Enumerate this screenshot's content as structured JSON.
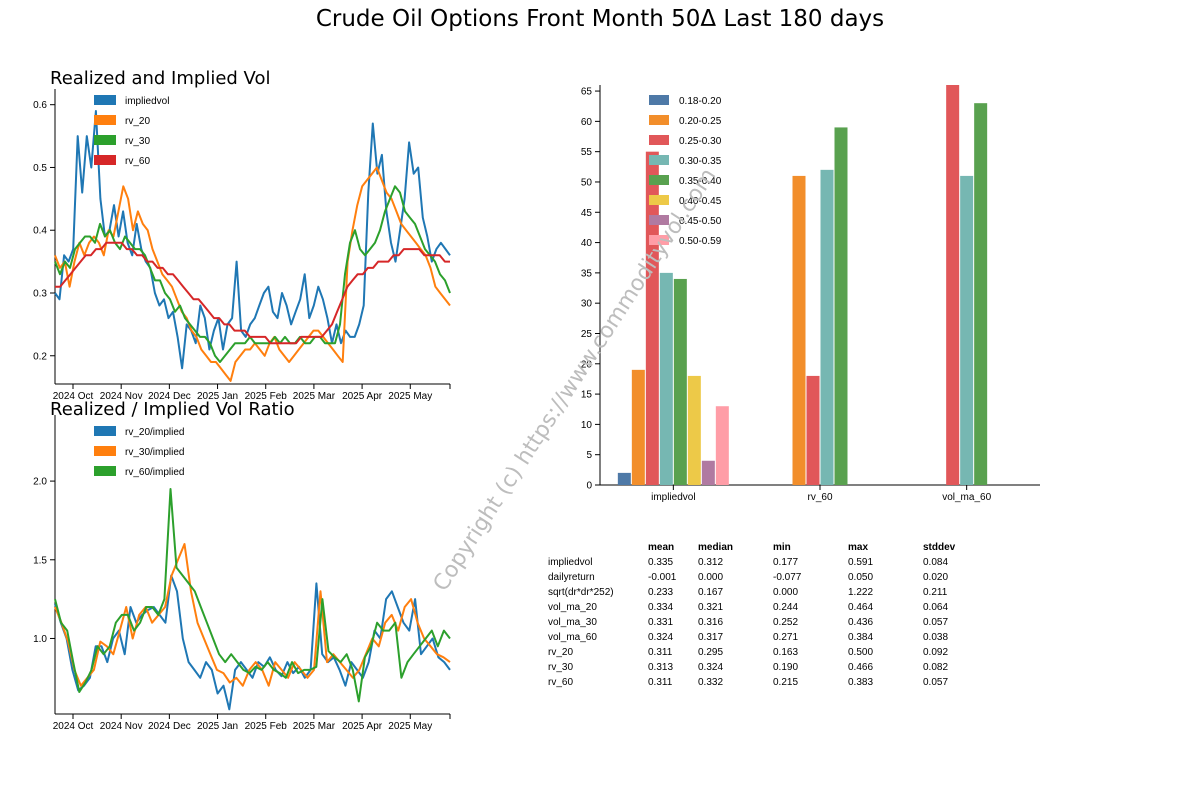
{
  "title": "Crude Oil Options Front Month 50Δ Last 180 days",
  "watermark": "Copyright (c) https://www.commodityvol.com",
  "colors": {
    "blue": "#1f77b4",
    "orange": "#ff7f0e",
    "green": "#2ca02c",
    "red": "#d62728"
  },
  "chart_data": [
    {
      "type": "line",
      "title": "Realized and Implied Vol",
      "x_ticks": [
        "2024 Oct",
        "2024 Nov",
        "2024 Dec",
        "2025 Jan",
        "2025 Feb",
        "2025 Mar",
        "2025 Apr",
        "2025 May"
      ],
      "y_ticks": [
        "0.2",
        "0.3",
        "0.4",
        "0.5",
        "0.6"
      ],
      "ylim": [
        0.155,
        0.625
      ],
      "legend": "top-left",
      "series": [
        {
          "name": "impliedvol",
          "color": "#1f77b4",
          "values": [
            0.3,
            0.29,
            0.36,
            0.35,
            0.37,
            0.55,
            0.46,
            0.55,
            0.5,
            0.59,
            0.45,
            0.39,
            0.4,
            0.44,
            0.39,
            0.43,
            0.38,
            0.36,
            0.41,
            0.37,
            0.35,
            0.34,
            0.3,
            0.28,
            0.29,
            0.26,
            0.27,
            0.23,
            0.18,
            0.25,
            0.24,
            0.22,
            0.28,
            0.26,
            0.21,
            0.24,
            0.26,
            0.21,
            0.25,
            0.26,
            0.35,
            0.24,
            0.23,
            0.25,
            0.26,
            0.28,
            0.3,
            0.31,
            0.27,
            0.26,
            0.3,
            0.28,
            0.25,
            0.27,
            0.29,
            0.33,
            0.26,
            0.28,
            0.31,
            0.29,
            0.26,
            0.22,
            0.25,
            0.22,
            0.24,
            0.23,
            0.23,
            0.25,
            0.28,
            0.46,
            0.57,
            0.49,
            0.52,
            0.43,
            0.38,
            0.35,
            0.4,
            0.45,
            0.54,
            0.49,
            0.5,
            0.42,
            0.39,
            0.35,
            0.37,
            0.38,
            0.37,
            0.36
          ]
        },
        {
          "name": "rv_20",
          "color": "#ff7f0e",
          "values": [
            0.36,
            0.34,
            0.35,
            0.31,
            0.35,
            0.38,
            0.36,
            0.38,
            0.39,
            0.38,
            0.36,
            0.4,
            0.39,
            0.43,
            0.47,
            0.45,
            0.4,
            0.43,
            0.41,
            0.4,
            0.37,
            0.35,
            0.33,
            0.32,
            0.31,
            0.29,
            0.27,
            0.26,
            0.24,
            0.23,
            0.21,
            0.2,
            0.19,
            0.19,
            0.18,
            0.17,
            0.16,
            0.19,
            0.2,
            0.21,
            0.21,
            0.22,
            0.21,
            0.2,
            0.22,
            0.23,
            0.21,
            0.2,
            0.19,
            0.2,
            0.21,
            0.22,
            0.23,
            0.24,
            0.24,
            0.23,
            0.22,
            0.21,
            0.2,
            0.19,
            0.35,
            0.4,
            0.44,
            0.47,
            0.48,
            0.49,
            0.5,
            0.48,
            0.46,
            0.45,
            0.43,
            0.41,
            0.4,
            0.39,
            0.38,
            0.37,
            0.36,
            0.34,
            0.31,
            0.3,
            0.29,
            0.28
          ]
        },
        {
          "name": "rv_30",
          "color": "#2ca02c",
          "values": [
            0.35,
            0.33,
            0.35,
            0.34,
            0.37,
            0.38,
            0.39,
            0.39,
            0.38,
            0.41,
            0.39,
            0.4,
            0.38,
            0.37,
            0.39,
            0.38,
            0.37,
            0.37,
            0.36,
            0.34,
            0.32,
            0.32,
            0.3,
            0.29,
            0.27,
            0.28,
            0.26,
            0.25,
            0.24,
            0.23,
            0.23,
            0.22,
            0.2,
            0.19,
            0.2,
            0.21,
            0.22,
            0.22,
            0.22,
            0.23,
            0.22,
            0.22,
            0.22,
            0.22,
            0.23,
            0.22,
            0.23,
            0.22,
            0.22,
            0.23,
            0.22,
            0.22,
            0.23,
            0.23,
            0.22,
            0.22,
            0.22,
            0.25,
            0.33,
            0.38,
            0.4,
            0.37,
            0.36,
            0.37,
            0.38,
            0.4,
            0.43,
            0.45,
            0.47,
            0.46,
            0.43,
            0.42,
            0.41,
            0.39,
            0.37,
            0.36,
            0.35,
            0.33,
            0.32,
            0.3
          ]
        },
        {
          "name": "rv_60",
          "color": "#d62728",
          "values": [
            0.31,
            0.31,
            0.32,
            0.33,
            0.34,
            0.35,
            0.36,
            0.36,
            0.37,
            0.37,
            0.38,
            0.38,
            0.38,
            0.38,
            0.37,
            0.37,
            0.36,
            0.36,
            0.35,
            0.35,
            0.34,
            0.34,
            0.33,
            0.33,
            0.32,
            0.31,
            0.3,
            0.29,
            0.29,
            0.28,
            0.27,
            0.26,
            0.26,
            0.25,
            0.25,
            0.24,
            0.24,
            0.24,
            0.23,
            0.23,
            0.23,
            0.23,
            0.22,
            0.22,
            0.22,
            0.22,
            0.22,
            0.22,
            0.23,
            0.23,
            0.23,
            0.23,
            0.23,
            0.24,
            0.25,
            0.27,
            0.29,
            0.31,
            0.32,
            0.33,
            0.33,
            0.34,
            0.34,
            0.35,
            0.35,
            0.35,
            0.36,
            0.36,
            0.37,
            0.37,
            0.37,
            0.37,
            0.36,
            0.36,
            0.36,
            0.36,
            0.35,
            0.35
          ]
        }
      ]
    },
    {
      "type": "line",
      "title": "Realized / Implied Vol Ratio",
      "x_ticks": [
        "2024 Oct",
        "2024 Nov",
        "2024 Dec",
        "2025 Jan",
        "2025 Feb",
        "2025 Mar",
        "2025 Apr",
        "2025 May"
      ],
      "y_ticks": [
        "1.0",
        "1.5",
        "2.0"
      ],
      "ylim": [
        0.52,
        2.42
      ],
      "legend": "top-left",
      "series": [
        {
          "name": "rv_20/implied",
          "color": "#1f77b4",
          "values": [
            1.22,
            1.1,
            1.0,
            0.8,
            0.67,
            0.7,
            0.75,
            0.95,
            0.95,
            0.85,
            1.0,
            1.05,
            0.9,
            1.2,
            1.1,
            1.15,
            1.18,
            1.2,
            1.15,
            1.1,
            1.4,
            1.3,
            1.0,
            0.85,
            0.8,
            0.75,
            0.85,
            0.8,
            0.65,
            0.7,
            0.55,
            0.8,
            0.85,
            0.8,
            0.75,
            0.85,
            0.82,
            0.88,
            0.8,
            0.76,
            0.85,
            0.78,
            0.82,
            0.75,
            0.8,
            1.35,
            0.9,
            0.85,
            0.88,
            0.8,
            0.7,
            0.85,
            0.8,
            0.75,
            0.85,
            1.05,
            1.0,
            1.25,
            1.3,
            1.2,
            1.1,
            1.05,
            1.25,
            0.9,
            0.95,
            1.0,
            0.88,
            0.85,
            0.8
          ]
        },
        {
          "name": "rv_30/implied",
          "color": "#ff7f0e",
          "values": [
            1.2,
            1.1,
            0.98,
            0.8,
            0.7,
            0.75,
            0.8,
            0.98,
            0.95,
            0.9,
            1.05,
            1.2,
            1.0,
            1.15,
            1.2,
            1.1,
            1.15,
            1.2,
            1.4,
            1.5,
            1.6,
            1.3,
            1.1,
            1.0,
            0.9,
            0.8,
            0.78,
            0.72,
            0.75,
            0.7,
            0.8,
            0.85,
            0.8,
            0.7,
            0.85,
            0.8,
            0.75,
            0.85,
            0.8,
            0.75,
            0.8,
            1.3,
            0.85,
            0.9,
            0.85,
            0.8,
            0.75,
            0.8,
            0.9,
            1.0,
            0.95,
            1.1,
            1.15,
            1.05,
            1.2,
            1.25,
            1.1,
            1.0,
            0.95,
            0.9,
            0.88,
            0.85
          ]
        },
        {
          "name": "rv_60/implied",
          "color": "#2ca02c",
          "values": [
            1.25,
            1.1,
            1.05,
            0.85,
            0.66,
            0.72,
            0.8,
            0.95,
            0.9,
            0.95,
            1.1,
            1.15,
            1.15,
            1.05,
            1.1,
            1.2,
            1.2,
            1.15,
            1.25,
            1.95,
            1.45,
            1.4,
            1.35,
            1.3,
            1.2,
            1.1,
            1.0,
            0.9,
            0.85,
            0.9,
            0.85,
            0.8,
            0.78,
            0.82,
            0.8,
            0.85,
            0.8,
            0.78,
            0.75,
            0.85,
            0.78,
            0.8,
            0.8,
            0.82,
            1.25,
            0.92,
            0.88,
            0.85,
            0.9,
            0.8,
            0.6,
            0.88,
            0.95,
            1.1,
            1.05,
            1.05,
            1.1,
            0.75,
            0.85,
            0.9,
            0.95,
            1.0,
            1.05,
            0.95,
            1.05,
            1.0
          ]
        }
      ]
    },
    {
      "type": "bar",
      "categories": [
        "impliedvol",
        "rv_60",
        "vol_ma_60"
      ],
      "y_ticks": [
        "0",
        "5",
        "10",
        "15",
        "20",
        "25",
        "30",
        "35",
        "40",
        "45",
        "50",
        "55",
        "60",
        "65"
      ],
      "ylim": [
        0,
        66
      ],
      "legend": "top-left",
      "series": [
        {
          "name": "0.18-0.20",
          "color": "#4e79a7",
          "values": [
            2,
            null,
            null
          ]
        },
        {
          "name": "0.20-0.25",
          "color": "#f28e2b",
          "values": [
            19,
            51,
            null
          ]
        },
        {
          "name": "0.25-0.30",
          "color": "#e15759",
          "values": [
            55,
            18,
            66
          ]
        },
        {
          "name": "0.30-0.35",
          "color": "#76b7b2",
          "values": [
            35,
            52,
            51
          ]
        },
        {
          "name": "0.35-0.40",
          "color": "#59a14f",
          "values": [
            34,
            59,
            63
          ]
        },
        {
          "name": "0.40-0.45",
          "color": "#edc948",
          "values": [
            18,
            null,
            null
          ]
        },
        {
          "name": "0.45-0.50",
          "color": "#b07aa1",
          "values": [
            4,
            null,
            null
          ]
        },
        {
          "name": "0.50-0.59",
          "color": "#ff9da7",
          "values": [
            13,
            null,
            null
          ]
        }
      ]
    },
    {
      "type": "table",
      "columns": [
        "mean",
        "median",
        "min",
        "max",
        "stddev"
      ],
      "rows": [
        {
          "label": "impliedvol",
          "cells": [
            "0.335",
            "0.312",
            "0.177",
            "0.591",
            "0.084"
          ]
        },
        {
          "label": "dailyreturn",
          "cells": [
            "-0.001",
            "0.000",
            "-0.077",
            "0.050",
            "0.020"
          ]
        },
        {
          "label": "sqrt(dr*dr*252)",
          "cells": [
            "0.233",
            "0.167",
            "0.000",
            "1.222",
            "0.211"
          ]
        },
        {
          "label": "vol_ma_20",
          "cells": [
            "0.334",
            "0.321",
            "0.244",
            "0.464",
            "0.064"
          ]
        },
        {
          "label": "vol_ma_30",
          "cells": [
            "0.331",
            "0.316",
            "0.252",
            "0.436",
            "0.057"
          ]
        },
        {
          "label": "vol_ma_60",
          "cells": [
            "0.324",
            "0.317",
            "0.271",
            "0.384",
            "0.038"
          ]
        },
        {
          "label": "rv_20",
          "cells": [
            "0.311",
            "0.295",
            "0.163",
            "0.500",
            "0.092"
          ]
        },
        {
          "label": "rv_30",
          "cells": [
            "0.313",
            "0.324",
            "0.190",
            "0.466",
            "0.082"
          ]
        },
        {
          "label": "rv_60",
          "cells": [
            "0.311",
            "0.332",
            "0.215",
            "0.383",
            "0.057"
          ]
        }
      ]
    }
  ]
}
